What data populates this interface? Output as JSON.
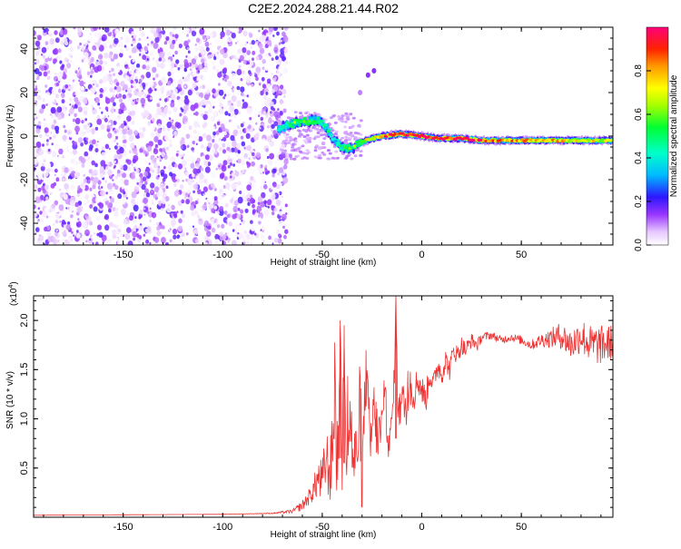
{
  "title": "C2E2.2024.288.21.44.R02",
  "colors": {
    "spectrogram_noise": "#7a2de0",
    "snr_line": "#ee3333",
    "axis": "#000000"
  },
  "chart_data": [
    {
      "type": "heatmap",
      "xlabel": "Height of straight line (km)",
      "ylabel": "Frequency (Hz)",
      "xlim": [
        -195,
        96
      ],
      "ylim": [
        -50,
        50
      ],
      "xticks": [
        -150,
        -100,
        -50,
        0,
        50
      ],
      "yticks": [
        -40,
        -20,
        0,
        20,
        40
      ],
      "colorbar": {
        "label": "Normalized spectral amplitude",
        "range": [
          0,
          1
        ],
        "ticks": [
          "0.0",
          "0.2",
          "0.4",
          "0.6",
          "0.8"
        ],
        "tick_values": [
          0,
          0.2,
          0.4,
          0.6,
          0.8
        ],
        "colormap": "rainbow"
      },
      "noise_region_x": [
        -195,
        -68
      ],
      "ridge": {
        "x": [
          -72,
          -68,
          -64,
          -60,
          -56,
          -52,
          -48,
          -44,
          -40,
          -36,
          -32,
          -28,
          -24,
          -20,
          -15,
          -10,
          -5,
          0,
          5,
          10,
          20,
          30,
          40,
          50,
          60,
          70,
          80,
          90,
          96
        ],
        "y": [
          3,
          5,
          6,
          6.5,
          7,
          7,
          4,
          -2,
          -5,
          -6,
          -4,
          -2,
          -1,
          0,
          0.5,
          1,
          0.5,
          0,
          -0.5,
          -1,
          -1,
          -2,
          -2,
          -2,
          -2,
          -2,
          -2,
          -2,
          -2
        ],
        "amplitude": [
          0.35,
          0.45,
          0.55,
          0.6,
          0.55,
          0.5,
          0.45,
          0.4,
          0.45,
          0.5,
          0.6,
          0.7,
          0.75,
          0.85,
          0.9,
          0.95,
          0.95,
          0.95,
          0.9,
          0.95,
          0.95,
          0.85,
          0.8,
          0.8,
          0.75,
          0.75,
          0.7,
          0.7,
          0.7
        ]
      },
      "stray_points": [
        {
          "x": -27,
          "y": 28,
          "amplitude": 0.1
        },
        {
          "x": -24,
          "y": 30,
          "amplitude": 0.1
        },
        {
          "x": -31,
          "y": 20,
          "amplitude": 0.05
        }
      ]
    },
    {
      "type": "line",
      "xlabel": "Height of straight line (km)",
      "ylabel": "SNR (10 * v/v)",
      "y_multiplier": "(x10",
      "y_multiplier_exponent": "4",
      "y_multiplier_close": ")",
      "xlim": [
        -195,
        96
      ],
      "ylim": [
        0,
        22500
      ],
      "xticks": [
        -150,
        -100,
        -50,
        0,
        50
      ],
      "yticks": [
        5000,
        10000,
        15000,
        20000
      ],
      "ytick_labels": [
        "0.5",
        "1.0",
        "1.5",
        "2.0"
      ],
      "series": [
        {
          "x": [
            -195,
            -150,
            -100,
            -75,
            -65,
            -60,
            -55,
            -52,
            -50,
            -48,
            -46,
            -44,
            -42,
            -41,
            -40,
            -39,
            -38,
            -36,
            -34,
            -32,
            -30,
            -28,
            -26,
            -24,
            -22,
            -20,
            -18,
            -16,
            -14,
            -13,
            -12,
            -10,
            -8,
            -6,
            -4,
            -2,
            0,
            2,
            4,
            6,
            8,
            10,
            12,
            14,
            16,
            18,
            20,
            22,
            25,
            28,
            30,
            35,
            40,
            45,
            50,
            55,
            60,
            65,
            70,
            75,
            80,
            85,
            90,
            96
          ],
          "values": [
            200,
            250,
            300,
            400,
            600,
            1200,
            2500,
            4000,
            3500,
            6000,
            4500,
            9000,
            5000,
            20000,
            6000,
            19500,
            7000,
            10000,
            5000,
            8000,
            4000,
            15000,
            7000,
            11000,
            8000,
            9000,
            11000,
            7000,
            13000,
            22000,
            10000,
            12000,
            11000,
            13000,
            12500,
            14000,
            13000,
            12000,
            14500,
            13500,
            15500,
            14500,
            16000,
            15000,
            17000,
            16500,
            17500,
            17000,
            18000,
            17500,
            18300,
            18500,
            18000,
            18300,
            18000,
            17500,
            18000,
            18200,
            18500,
            17500,
            18500,
            17500,
            17500,
            17800
          ],
          "noise": [
            0,
            0,
            0,
            50,
            200,
            500,
            1000,
            2000,
            2500,
            3000,
            3500,
            4000,
            4500,
            2000,
            4500,
            2000,
            4500,
            4000,
            4000,
            4000,
            3500,
            3000,
            3500,
            3000,
            3000,
            3000,
            2500,
            2500,
            2000,
            1000,
            2000,
            2000,
            2000,
            1800,
            1800,
            1500,
            1500,
            1500,
            1300,
            1300,
            1200,
            1200,
            1100,
            1100,
            1000,
            1000,
            900,
            900,
            700,
            600,
            500,
            400,
            400,
            400,
            450,
            500,
            700,
            1000,
            1400,
            1600,
            1800,
            2000,
            2000,
            1800
          ]
        }
      ]
    }
  ]
}
